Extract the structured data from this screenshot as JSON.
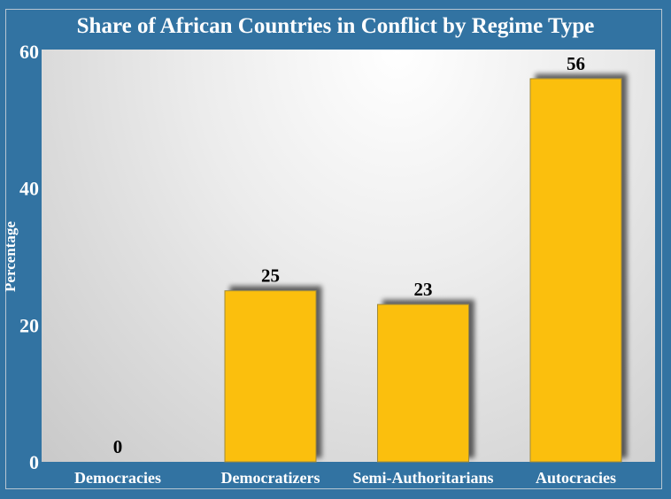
{
  "chart_data": {
    "type": "bar",
    "title": "Share of African Countries in Conflict by Regime Type",
    "xlabel": "",
    "ylabel": "Percentage",
    "categories": [
      "Democracies",
      "Democratizers",
      "Semi-Authoritarians",
      "Autocracies"
    ],
    "values": [
      0,
      25,
      23,
      56
    ],
    "data_labels": [
      "0",
      "25",
      "23",
      "56"
    ],
    "ylim": [
      0,
      60
    ],
    "yticks": [
      0,
      20,
      40,
      60
    ],
    "grid": false,
    "colors": {
      "bar": "#fbbf0f",
      "background": "#3273a2"
    }
  }
}
